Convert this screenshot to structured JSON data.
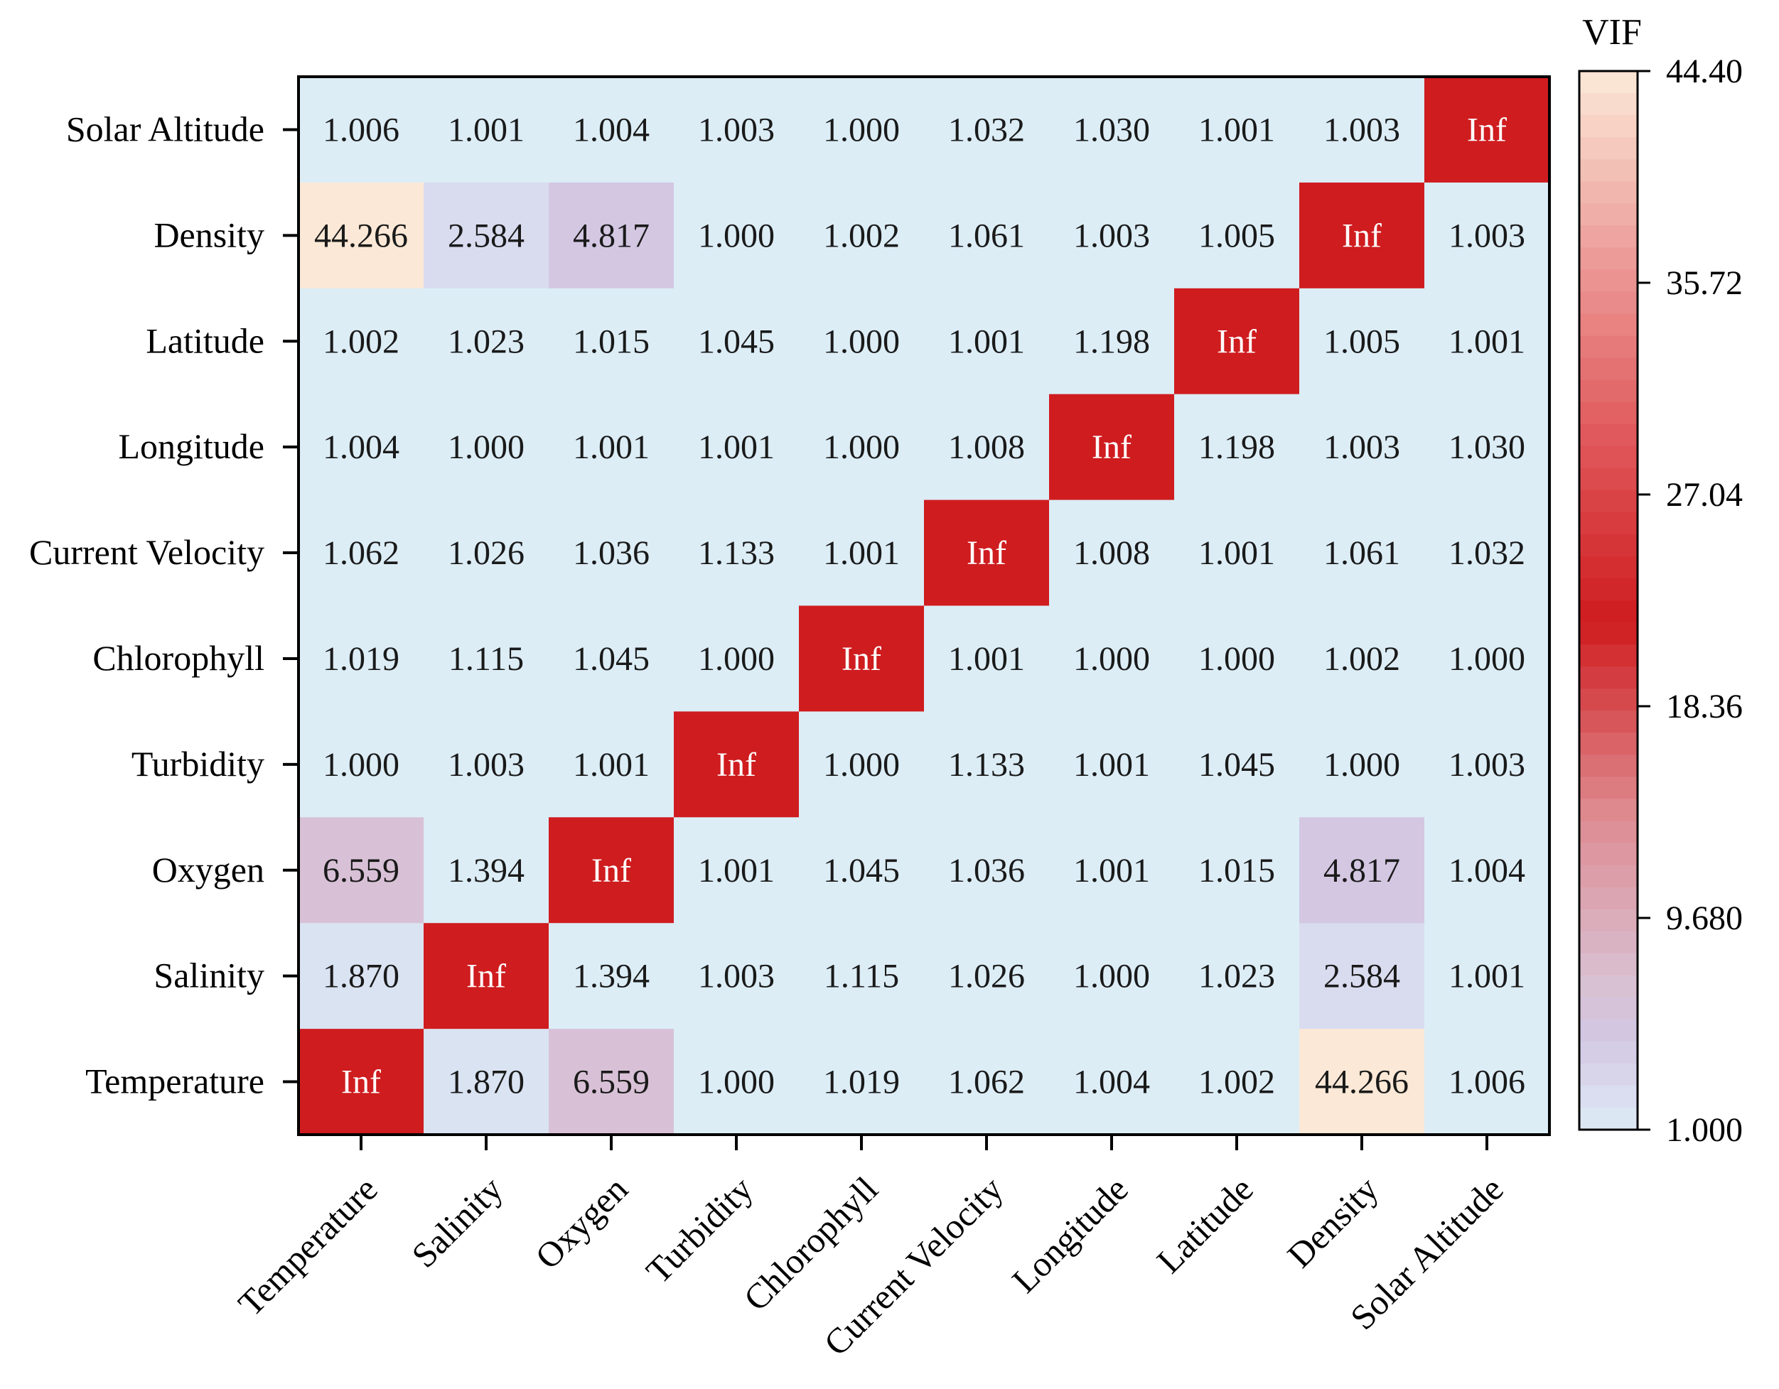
{
  "chart_data": {
    "type": "heatmap",
    "title": "",
    "x_categories": [
      "Temperature",
      "Salinity",
      "Oxygen",
      "Turbidity",
      "Chlorophyll",
      "Current Velocity",
      "Longitude",
      "Latitude",
      "Density",
      "Solar Altitude"
    ],
    "y_categories": [
      "Solar Altitude",
      "Density",
      "Latitude",
      "Longitude",
      "Current Velocity",
      "Chlorophyll",
      "Turbidity",
      "Oxygen",
      "Salinity",
      "Temperature"
    ],
    "values": [
      [
        "1.006",
        "1.001",
        "1.004",
        "1.003",
        "1.000",
        "1.032",
        "1.030",
        "1.001",
        "1.003",
        "Inf"
      ],
      [
        "44.266",
        "2.584",
        "4.817",
        "1.000",
        "1.002",
        "1.061",
        "1.003",
        "1.005",
        "Inf",
        "1.003"
      ],
      [
        "1.002",
        "1.023",
        "1.015",
        "1.045",
        "1.000",
        "1.001",
        "1.198",
        "Inf",
        "1.005",
        "1.001"
      ],
      [
        "1.004",
        "1.000",
        "1.001",
        "1.001",
        "1.000",
        "1.008",
        "Inf",
        "1.198",
        "1.003",
        "1.030"
      ],
      [
        "1.062",
        "1.026",
        "1.036",
        "1.133",
        "1.001",
        "Inf",
        "1.008",
        "1.001",
        "1.061",
        "1.032"
      ],
      [
        "1.019",
        "1.115",
        "1.045",
        "1.000",
        "Inf",
        "1.001",
        "1.000",
        "1.000",
        "1.002",
        "1.000"
      ],
      [
        "1.000",
        "1.003",
        "1.001",
        "Inf",
        "1.000",
        "1.133",
        "1.001",
        "1.045",
        "1.000",
        "1.003"
      ],
      [
        "6.559",
        "1.394",
        "Inf",
        "1.001",
        "1.045",
        "1.036",
        "1.001",
        "1.015",
        "4.817",
        "1.004"
      ],
      [
        "1.870",
        "Inf",
        "1.394",
        "1.003",
        "1.115",
        "1.026",
        "1.000",
        "1.023",
        "2.584",
        "1.001"
      ],
      [
        "Inf",
        "1.870",
        "6.559",
        "1.000",
        "1.019",
        "1.062",
        "1.004",
        "1.002",
        "44.266",
        "1.006"
      ]
    ],
    "colorbar": {
      "title": "VIF",
      "ticks": [
        "44.40",
        "35.72",
        "27.04",
        "18.36",
        "9.680",
        "1.000"
      ],
      "min": 1.0,
      "max": 44.4
    },
    "colors": {
      "low": "#dcedf6",
      "inf": "#cf1c1f",
      "border": "#000000"
    }
  }
}
